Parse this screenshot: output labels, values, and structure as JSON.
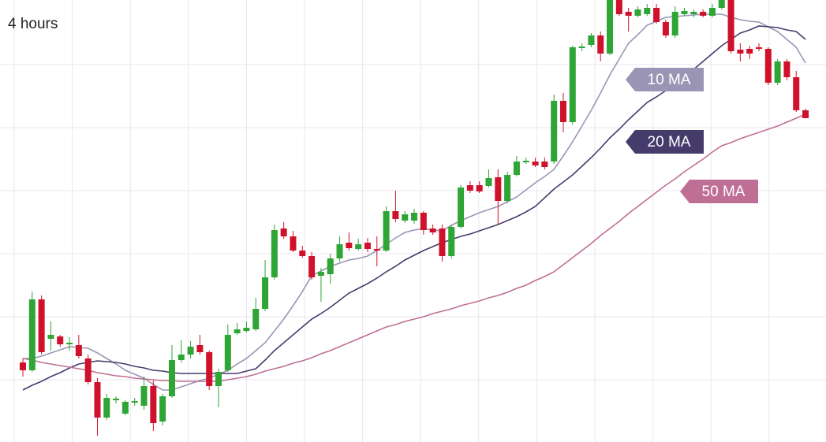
{
  "chart_data": {
    "type": "candlestick",
    "title": "4 hours",
    "categories": [
      null,
      null,
      null,
      null,
      null,
      null,
      null,
      null,
      null,
      null,
      null,
      null,
      null,
      null,
      null,
      null,
      null,
      null,
      null,
      null,
      null,
      null,
      null,
      null,
      null,
      null,
      null,
      null,
      null,
      null,
      null,
      null,
      null,
      null,
      null,
      null,
      null,
      null,
      null,
      null,
      null,
      null,
      null,
      null,
      null,
      null,
      null,
      null,
      null,
      null,
      null,
      null,
      null,
      null,
      null,
      null,
      null,
      null,
      null,
      null,
      null,
      null,
      null,
      null,
      null,
      null,
      null,
      null,
      null,
      null,
      null,
      null,
      null,
      null,
      null,
      null,
      null,
      null,
      null,
      null,
      null,
      null,
      null,
      null,
      null
    ],
    "open": [
      10.2,
      9.2,
      18.2,
      13.2,
      13.5,
      12.5,
      12.4,
      10.7,
      7.7,
      3.2,
      5.4,
      3.7,
      5.1,
      4.7,
      7.2,
      2.7,
      5.9,
      10.5,
      11.2,
      12.4,
      11.5,
      7.2,
      9.2,
      13.9,
      14.2,
      14.4,
      17.0,
      21.0,
      27.2,
      26.2,
      24.4,
      23.7,
      21.2,
      21.4,
      23.4,
      25.4,
      24.6,
      25.4,
      24.6,
      24.4,
      29.4,
      28.2,
      28.2,
      29.2,
      27.2,
      27.2,
      23.7,
      27.4,
      32.7,
      32.7,
      32.6,
      33.7,
      30.7,
      34.0,
      35.6,
      35.7,
      35.7,
      35.7,
      43.4,
      40.7,
      50.1,
      50.5,
      51.7,
      49.4,
      56.2,
      54.7,
      54.2,
      54.4,
      55.2,
      53.4,
      51.7,
      54.4,
      54.4,
      54.7,
      54.2,
      55.2,
      56.2,
      49.9,
      50.0,
      50.2,
      50.0,
      45.7,
      48.4,
      46.4,
      42.2
    ],
    "high": [
      10.7,
      19.2,
      18.7,
      15.4,
      13.7,
      13.4,
      13.7,
      11.2,
      8.2,
      6.2,
      5.9,
      5.4,
      5.7,
      8.4,
      7.9,
      6.2,
      12.4,
      13.0,
      12.9,
      13.7,
      11.7,
      9.4,
      15.0,
      15.2,
      15.4,
      18.4,
      23.2,
      27.7,
      28.0,
      26.9,
      25.0,
      24.2,
      22.2,
      24.0,
      26.2,
      26.7,
      25.9,
      26.0,
      26.2,
      30.0,
      32.0,
      29.4,
      29.7,
      29.4,
      27.7,
      27.7,
      27.7,
      32.7,
      33.2,
      33.2,
      34.7,
      34.7,
      34.4,
      36.4,
      36.2,
      36.2,
      36.2,
      44.2,
      44.4,
      50.4,
      50.7,
      52.0,
      52.2,
      56.2,
      56.2,
      55.2,
      55.4,
      55.7,
      55.7,
      53.7,
      55.4,
      55.2,
      55.0,
      55.0,
      55.7,
      56.2,
      56.2,
      50.7,
      50.4,
      50.7,
      50.2,
      48.7,
      48.7,
      47.2,
      42.4
    ],
    "low": [
      8.4,
      9.0,
      11.2,
      11.7,
      12.2,
      11.7,
      10.7,
      7.4,
      0.9,
      2.9,
      5.0,
      3.5,
      4.7,
      4.2,
      1.5,
      2.2,
      5.7,
      10.2,
      10.7,
      11.2,
      6.7,
      4.5,
      9.0,
      13.7,
      14.0,
      14.2,
      16.7,
      20.7,
      25.9,
      24.2,
      23.5,
      20.7,
      17.9,
      20.2,
      23.0,
      24.4,
      24.4,
      24.2,
      22.4,
      24.2,
      28.0,
      27.9,
      27.8,
      26.4,
      26.4,
      23.0,
      23.4,
      27.2,
      31.7,
      31.7,
      32.4,
      27.7,
      30.4,
      33.8,
      35.4,
      35.0,
      34.7,
      35.4,
      39.4,
      40.4,
      49.7,
      50.2,
      48.4,
      49.2,
      54.2,
      52.2,
      54.0,
      54.2,
      53.2,
      51.4,
      51.4,
      54.2,
      54.0,
      54.0,
      54.0,
      55.0,
      49.4,
      48.4,
      48.7,
      49.7,
      45.4,
      45.4,
      46.0,
      42.0,
      41.2
    ],
    "close": [
      9.2,
      18.2,
      11.5,
      13.7,
      12.5,
      12.7,
      11.0,
      7.7,
      3.2,
      5.7,
      5.6,
      5.2,
      5.3,
      7.2,
      2.5,
      5.9,
      10.5,
      11.2,
      12.2,
      11.5,
      7.2,
      9.0,
      13.7,
      14.4,
      14.6,
      17.0,
      21.0,
      27.0,
      26.2,
      24.4,
      23.7,
      21.0,
      21.7,
      23.4,
      25.2,
      24.7,
      25.2,
      24.6,
      24.4,
      29.4,
      28.4,
      29.0,
      29.2,
      27.0,
      26.7,
      23.7,
      27.4,
      32.4,
      32.0,
      31.9,
      33.6,
      30.7,
      34.0,
      35.7,
      35.8,
      35.2,
      35.0,
      43.4,
      40.7,
      50.2,
      50.3,
      51.7,
      49.4,
      56.2,
      54.4,
      54.2,
      55.0,
      55.2,
      53.4,
      51.7,
      54.7,
      54.8,
      54.7,
      54.2,
      55.2,
      56.2,
      49.7,
      49.4,
      49.4,
      50.0,
      45.7,
      48.4,
      46.4,
      42.2,
      41.2
    ],
    "up_color": "#2ea535",
    "down_color": "#d0112b",
    "series": [
      {
        "name": "10 MA",
        "color": "#9a95b4",
        "values": [
          10.7,
          10.7,
          11.0,
          11.4,
          11.8,
          12.2,
          12.1,
          12.0,
          11.4,
          10.7,
          10.0,
          9.2,
          8.7,
          8.2,
          7.4,
          6.7,
          6.7,
          7.1,
          7.5,
          7.9,
          8.2,
          8.7,
          9.2,
          10.0,
          10.7,
          11.7,
          12.7,
          14.2,
          15.7,
          17.4,
          19.2,
          21.2,
          21.8,
          22.4,
          22.8,
          23.2,
          23.4,
          23.7,
          24.4,
          25.2,
          26.0,
          26.7,
          27.0,
          27.2,
          27.0,
          26.9,
          27.6,
          28.2,
          28.7,
          29.2,
          29.6,
          30.0,
          30.6,
          31.2,
          32.1,
          33.0,
          33.8,
          34.7,
          36.4,
          38.2,
          40.2,
          42.2,
          44.4,
          46.7,
          48.7,
          50.7,
          51.8,
          53.0,
          53.5,
          54.0,
          54.1,
          54.2,
          54.3,
          54.4,
          54.4,
          54.4,
          54.0,
          53.7,
          53.5,
          53.4,
          52.8,
          52.2,
          51.2,
          50.2,
          48.2
        ]
      },
      {
        "name": "20 MA",
        "color": "#463c6c",
        "values": [
          6.7,
          7.3,
          7.8,
          8.4,
          8.9,
          9.5,
          10.0,
          10.2,
          10.4,
          10.3,
          10.2,
          10.0,
          9.7,
          9.5,
          9.2,
          9.1,
          8.9,
          8.8,
          8.8,
          8.8,
          8.8,
          8.8,
          8.8,
          8.8,
          9.1,
          9.4,
          10.5,
          11.7,
          12.7,
          13.7,
          14.7,
          15.7,
          16.4,
          17.2,
          18.1,
          19.0,
          19.6,
          20.2,
          20.9,
          21.7,
          22.4,
          23.2,
          23.8,
          24.4,
          24.9,
          25.4,
          25.8,
          26.2,
          26.5,
          26.9,
          27.3,
          27.7,
          28.2,
          28.7,
          29.3,
          30.0,
          31.1,
          32.2,
          33.1,
          34.0,
          35.1,
          36.2,
          37.4,
          38.7,
          39.8,
          41.0,
          42.1,
          43.2,
          43.9,
          44.7,
          45.5,
          46.4,
          47.4,
          48.4,
          49.4,
          50.4,
          51.2,
          52.0,
          52.4,
          52.9,
          52.8,
          52.7,
          52.4,
          52.2,
          51.2
        ]
      },
      {
        "name": "50 MA",
        "color": "#bf6f95",
        "values": [
          10.7,
          10.5,
          10.2,
          10.0,
          9.8,
          9.6,
          9.4,
          9.2,
          8.9,
          8.7,
          8.5,
          8.4,
          8.2,
          8.1,
          8.0,
          7.9,
          7.9,
          7.8,
          7.8,
          7.8,
          7.8,
          7.8,
          8.0,
          8.2,
          8.4,
          8.7,
          9.1,
          9.4,
          9.7,
          10.1,
          10.4,
          10.8,
          11.3,
          11.7,
          12.2,
          12.7,
          13.2,
          13.7,
          14.2,
          14.7,
          15.0,
          15.4,
          15.7,
          16.0,
          16.4,
          16.7,
          17.0,
          17.4,
          17.7,
          18.0,
          18.4,
          18.7,
          19.1,
          19.6,
          20.0,
          20.6,
          21.1,
          21.7,
          22.6,
          23.5,
          24.4,
          25.3,
          26.3,
          27.2,
          28.1,
          29.1,
          30.0,
          30.9,
          31.8,
          32.7,
          33.5,
          34.4,
          35.2,
          36.0,
          36.9,
          37.7,
          38.1,
          38.6,
          39.0,
          39.4,
          39.8,
          40.2,
          40.7,
          41.2,
          41.7
        ]
      }
    ],
    "ylim": [
      0.1,
      56.2
    ],
    "yticks": [
      8,
      16,
      24,
      32,
      40,
      48
    ],
    "grid": true
  }
}
